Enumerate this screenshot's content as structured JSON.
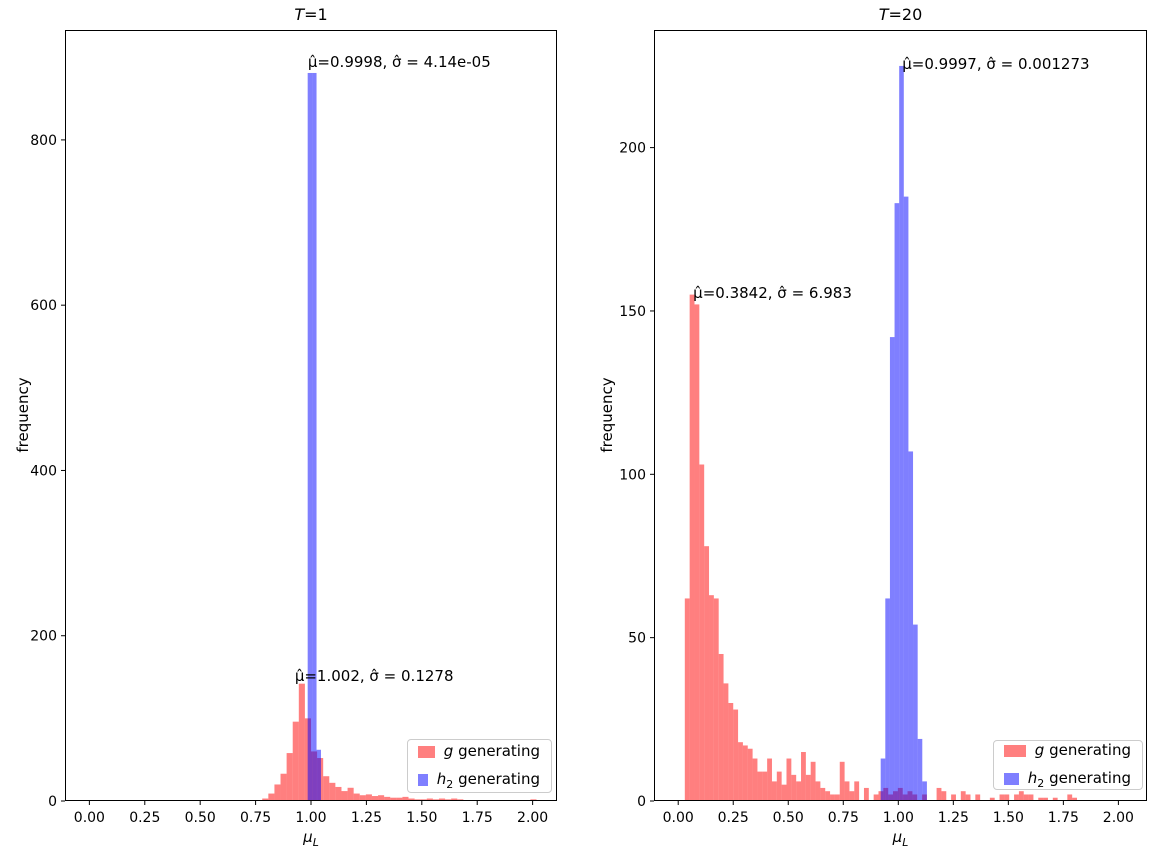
{
  "figure": {
    "background": "#ffffff",
    "text_color": "#000000"
  },
  "chart_data": [
    {
      "type": "bar",
      "subtype": "histogram-overlay",
      "title": "T=1",
      "title_var": "T",
      "title_eq": "=1",
      "xlabel": "μ_L",
      "xlabel_var": "μ",
      "xlabel_sub": "L",
      "ylabel": "frequency",
      "xlim": [
        -0.11,
        2.11
      ],
      "ylim": [
        0,
        933
      ],
      "grid": false,
      "xtick_values": [
        0,
        0.25,
        0.5,
        0.75,
        1.0,
        1.25,
        1.5,
        1.75,
        2.0
      ],
      "xtick_labels": [
        "0.00",
        "0.25",
        "0.50",
        "0.75",
        "1.00",
        "1.25",
        "1.50",
        "1.75",
        "2.00"
      ],
      "ytick_values": [
        0,
        200,
        400,
        600,
        800
      ],
      "ytick_labels": [
        "0",
        "200",
        "400",
        "600",
        "800"
      ],
      "legend_position": "lower right",
      "series": [
        {
          "name": "g generating",
          "label_var": "g",
          "label_sub": "",
          "label_rest": " generating",
          "color": "#ff0000",
          "opacity": 0.5,
          "legend_swatch": "#ff7f7f",
          "bin_start": 0.78,
          "bin_width": 0.0275,
          "counts": [
            3,
            9,
            20,
            33,
            58,
            96,
            142,
            100,
            60,
            52,
            30,
            22,
            17,
            12,
            16,
            9,
            7,
            8,
            6,
            7,
            5,
            4,
            4,
            5,
            3,
            2,
            2,
            3,
            2,
            3,
            2,
            3,
            2,
            1,
            1,
            0,
            1,
            1,
            0,
            1,
            1,
            1,
            0,
            1,
            2
          ]
        },
        {
          "name": "h2 generating",
          "label_var": "h",
          "label_sub": "2",
          "label_rest": " generating",
          "color": "#0000ff",
          "opacity": 0.5,
          "legend_swatch": "#7f7fff",
          "bin_start": 0.985,
          "bin_width": 0.02,
          "counts": [
            881,
            881,
            62
          ]
        }
      ],
      "annotations": [
        {
          "text": "μ̂=0.9998, σ̂ = 4.14e-05",
          "x": 0.986,
          "y": 888
        },
        {
          "text": "μ̂=1.002, σ̂ = 0.1278",
          "x": 0.927,
          "y": 145
        }
      ]
    },
    {
      "type": "bar",
      "subtype": "histogram-overlay",
      "title": "T=20",
      "title_var": "T",
      "title_eq": "=20",
      "xlabel": "μ_L",
      "xlabel_var": "μ",
      "xlabel_sub": "L",
      "ylabel": "frequency",
      "xlim": [
        -0.11,
        2.13
      ],
      "ylim": [
        0,
        236
      ],
      "grid": false,
      "xtick_values": [
        0,
        0.25,
        0.5,
        0.75,
        1.0,
        1.25,
        1.5,
        1.75,
        2.0
      ],
      "xtick_labels": [
        "0.00",
        "0.25",
        "0.50",
        "0.75",
        "1.00",
        "1.25",
        "1.50",
        "1.75",
        "2.00"
      ],
      "ytick_values": [
        0,
        50,
        100,
        150,
        200
      ],
      "ytick_labels": [
        "0",
        "50",
        "100",
        "150",
        "200"
      ],
      "legend_position": "lower right",
      "series": [
        {
          "name": "g generating",
          "label_var": "g",
          "label_sub": "",
          "label_rest": " generating",
          "color": "#ff0000",
          "opacity": 0.5,
          "legend_swatch": "#ff7f7f",
          "bin_start": 0.03,
          "bin_width": 0.022,
          "counts": [
            62,
            155,
            152,
            103,
            78,
            63,
            62,
            45,
            36,
            30,
            28,
            18,
            17,
            16,
            13,
            9,
            9,
            13,
            6,
            9,
            5,
            13,
            8,
            6,
            15,
            8,
            12,
            6,
            4,
            3,
            2,
            2,
            12,
            6,
            3,
            6,
            0,
            4,
            0,
            2,
            3,
            4,
            2,
            3,
            4,
            2,
            3,
            2,
            0,
            2,
            0,
            0,
            4,
            3,
            0,
            2,
            0,
            3,
            2,
            0,
            2,
            0,
            0,
            1,
            0,
            2,
            2,
            0,
            2,
            3,
            2,
            2,
            0,
            1,
            1,
            0,
            1,
            0,
            0,
            2,
            1
          ]
        },
        {
          "name": "h2 generating",
          "label_var": "h",
          "label_sub": "2",
          "label_rest": " generating",
          "color": "#0000ff",
          "opacity": 0.5,
          "legend_swatch": "#7f7fff",
          "bin_start": 0.92,
          "bin_width": 0.021,
          "counts": [
            13,
            62,
            142,
            183,
            225,
            185,
            107,
            54,
            19,
            6
          ]
        }
      ],
      "annotations": [
        {
          "text": "μ̂=0.9997, σ̂ = 0.001273",
          "x": 1.018,
          "y": 224
        },
        {
          "text": "μ̂=0.3842, σ̂ = 6.983",
          "x": 0.068,
          "y": 154
        }
      ]
    }
  ]
}
